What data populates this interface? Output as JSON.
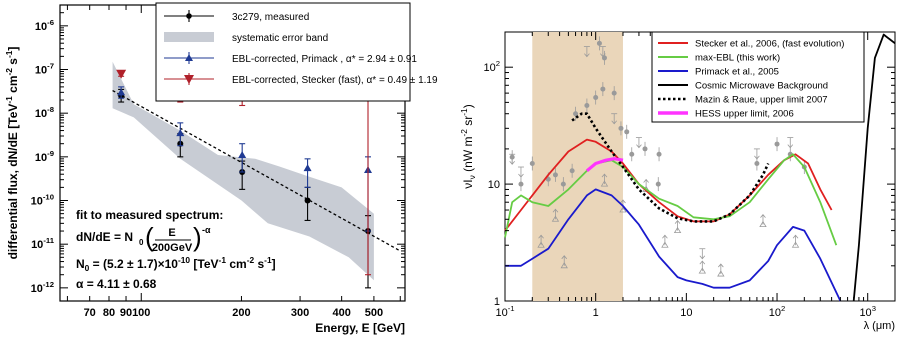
{
  "chart_data": [
    {
      "type": "scatter",
      "xlabel": "Energy, E [GeV]",
      "ylabel": "differential flux, dN/dE [TeV-1 cm-2 s-1]",
      "xscale": "log",
      "yscale": "log",
      "xlim": [
        57,
        620
      ],
      "ylim": [
        5e-13,
        3e-06
      ],
      "x_tick_labels": [
        "70",
        "80",
        "90",
        "100",
        "200",
        "300",
        "400",
        "500"
      ],
      "y_tick_labels": [
        {
          "m": "10",
          "e": "-12"
        },
        {
          "m": "10",
          "e": "-11"
        },
        {
          "m": "10",
          "e": "-10"
        },
        {
          "m": "10",
          "e": "-9"
        },
        {
          "m": "10",
          "e": "-8"
        },
        {
          "m": "10",
          "e": "-7"
        },
        {
          "m": "10",
          "e": "-6"
        }
      ],
      "legend": {
        "placement": "top",
        "items": [
          {
            "label": "3c279, measured",
            "marker": "dot",
            "color": "#000000"
          },
          {
            "label": "systematic error band",
            "marker": "band",
            "color": "#c8ccd4"
          },
          {
            "label": "EBL-corrected,  Primack , α* = 2.94 ± 0.91",
            "marker": "triangle-up",
            "color": "#1f3a93"
          },
          {
            "label": "EBL-corrected, Stecker (fast), α* = 0.49 ± 1.19",
            "marker": "triangle-down",
            "color": "#b0202a"
          }
        ]
      },
      "series": [
        {
          "name": "3c279, measured",
          "color": "#000000",
          "points": [
            {
              "x": 87,
              "y": 2.5e-08,
              "ylo": 1.8e-08,
              "yhi": 3.5e-08
            },
            {
              "x": 131,
              "y": 2e-09,
              "ylo": 1e-09,
              "yhi": 3.4e-09
            },
            {
              "x": 201,
              "y": 4.5e-10,
              "ylo": 1.8e-10,
              "yhi": 8e-10
            },
            {
              "x": 316,
              "y": 1e-10,
              "ylo": 3.5e-11,
              "yhi": 2e-10
            },
            {
              "x": 480,
              "y": 2e-11,
              "ylo": 1e-12,
              "yhi": 4.5e-11
            }
          ]
        },
        {
          "name": "EBL-corrected,  Primack",
          "color": "#1f3a93",
          "points": [
            {
              "x": 87,
              "y": 3e-08,
              "ylo": 2.2e-08,
              "yhi": 4e-08
            },
            {
              "x": 131,
              "y": 3.5e-09,
              "ylo": 1.8e-09,
              "yhi": 6e-09
            },
            {
              "x": 201,
              "y": 1.1e-09,
              "ylo": 4.5e-10,
              "yhi": 2e-09
            },
            {
              "x": 316,
              "y": 5.5e-10,
              "ylo": 2e-10,
              "yhi": 9e-10
            },
            {
              "x": 480,
              "y": 5e-10,
              "ylo": 2e-11,
              "yhi": 1e-09
            }
          ]
        },
        {
          "name": "EBL-corrected, Stecker (fast)",
          "color": "#b0202a",
          "points": [
            {
              "x": 87,
              "y": 8e-08,
              "ylo": 7e-08,
              "yhi": 9e-08
            },
            {
              "x": 131,
              "y": 2.5e-08,
              "ylo": 1.8e-08,
              "yhi": 3.5e-08
            },
            {
              "x": 201,
              "y": 2.5e-08,
              "ylo": 1.5e-08,
              "yhi": 3.5e-08
            },
            {
              "x": 316,
              "y": 5e-08,
              "ylo": 2.5e-08,
              "yhi": 8e-08
            },
            {
              "x": 480,
              "y": 2e-07,
              "ylo": 2e-12,
              "yhi": 3e-07
            }
          ]
        }
      ],
      "band": {
        "upper": [
          [
            82,
            1.5e-07
          ],
          [
            95,
            1.6e-08
          ],
          [
            131,
            4e-09
          ],
          [
            170,
            1.1e-09
          ],
          [
            220,
            9e-10
          ],
          [
            260,
            6e-10
          ],
          [
            320,
            3.5e-10
          ],
          [
            400,
            2e-10
          ],
          [
            500,
            5e-11
          ]
        ],
        "lower": [
          [
            500,
            1.5e-12
          ],
          [
            420,
            5e-12
          ],
          [
            320,
            1.5e-11
          ],
          [
            240,
            3e-11
          ],
          [
            200,
            1e-10
          ],
          [
            131,
            9e-10
          ],
          [
            95,
            8e-09
          ],
          [
            82,
            1.3e-08
          ]
        ]
      },
      "fit_line": {
        "x": [
          82,
          600
        ],
        "y": [
          3.3e-08,
          7e-12
        ]
      },
      "annotations": [
        {
          "text": "fit to measured spectrum:"
        },
        {
          "parts": [
            "dN/dE = N",
            "0",
            "(",
            "E",
            "200GeV",
            ")",
            "-α"
          ]
        },
        {
          "parts": [
            "N",
            "0",
            " = (5.2 ± 1.7)×10",
            "-10",
            " [TeV",
            "-1",
            " cm",
            "-2",
            " s",
            "-1",
            "]"
          ]
        },
        {
          "text": "α  = 4.11 ± 0.68"
        }
      ]
    },
    {
      "type": "line",
      "xlabel": "λ (μm)",
      "ylabel": "νI_ν (nW m-2 sr-1)",
      "xscale": "log",
      "yscale": "log",
      "xlim": [
        0.1,
        2000
      ],
      "ylim": [
        1,
        200
      ],
      "x_tick_labels": [
        {
          "v": 0.1,
          "m": "10",
          "e": "-1"
        },
        {
          "v": 1,
          "t": "1"
        },
        {
          "v": 10,
          "t": "10"
        },
        {
          "v": 100,
          "t": "10",
          "e": "2"
        },
        {
          "v": 1000,
          "t": "10",
          "e": "3"
        }
      ],
      "y_tick_labels": [
        {
          "v": 1,
          "t": "1"
        },
        {
          "v": 10,
          "t": "10"
        },
        {
          "v": 100,
          "t": "10",
          "e": "2"
        }
      ],
      "shaded_region": {
        "x": [
          0.2,
          2.0
        ],
        "color": "#ead6ba"
      },
      "legend": {
        "placement": "top-right",
        "items": [
          {
            "label": "Stecker et al., 2006, (fast evolution)",
            "color": "#e02020"
          },
          {
            "label": "max-EBL (this work)",
            "color": "#66cc44"
          },
          {
            "label": "Primack et al., 2005",
            "color": "#1a1acc"
          },
          {
            "label": "Cosmic Microwave Background",
            "color": "#000000"
          },
          {
            "label": "Mazin & Raue, upper limit 2007",
            "color": "#000000",
            "dash": "dotted"
          },
          {
            "label": "HESS upper limit, 2006",
            "color": "#ff33ff"
          }
        ]
      },
      "series": [
        {
          "name": "Stecker et al., 2006, (fast evolution)",
          "color": "#e02020",
          "x": [
            0.1,
            0.15,
            0.2,
            0.3,
            0.5,
            0.8,
            1,
            1.5,
            2,
            3,
            5,
            8,
            12,
            20,
            30,
            50,
            80,
            120,
            160,
            220,
            300,
            400
          ],
          "y": [
            4,
            6,
            8,
            12,
            19,
            24,
            23,
            19,
            15,
            10,
            7,
            5.3,
            4.8,
            4.8,
            5.5,
            8,
            12,
            16,
            18,
            15,
            9,
            6
          ]
        },
        {
          "name": "max-EBL (this work)",
          "color": "#66cc44",
          "x": [
            0.1,
            0.12,
            0.15,
            0.2,
            0.3,
            0.5,
            0.8,
            1,
            1.5,
            2,
            3,
            5,
            8,
            12,
            20,
            30,
            50,
            80,
            120,
            150,
            200,
            300,
            450
          ],
          "y": [
            3.5,
            7,
            8,
            7,
            6.5,
            9,
            13,
            15,
            16,
            14,
            10,
            7.5,
            6.5,
            5.2,
            5,
            5.3,
            7,
            11,
            16,
            18,
            14,
            7,
            3
          ]
        },
        {
          "name": "Primack et al., 2005",
          "color": "#1a1acc",
          "x": [
            0.1,
            0.15,
            0.2,
            0.3,
            0.5,
            0.8,
            1,
            1.5,
            2,
            3,
            5,
            8,
            10,
            15,
            20,
            30,
            50,
            80,
            100,
            150,
            200,
            300,
            500
          ],
          "y": [
            2,
            2,
            2.3,
            2.8,
            5,
            8,
            9,
            8,
            6.5,
            4.5,
            2.4,
            1.6,
            1.5,
            1.4,
            1.3,
            1.3,
            1.5,
            2.2,
            3,
            4.3,
            4,
            2.3,
            1
          ]
        },
        {
          "name": "Cosmic Microwave Background",
          "color": "#000000",
          "x": [
            700,
            800,
            1000,
            1200,
            1500,
            2000
          ],
          "y": [
            1,
            3,
            30,
            120,
            190,
            160
          ]
        },
        {
          "name": "Mazin & Raue, upper limit 2007",
          "color": "#000000",
          "dash": "dotted",
          "x": [
            0.55,
            0.7,
            0.8,
            1,
            1.5,
            2,
            3,
            5,
            8,
            12,
            20,
            30,
            50,
            70,
            80
          ],
          "y": [
            35,
            40,
            40,
            30,
            19,
            14,
            9,
            6.2,
            5.1,
            4.8,
            4.8,
            5.5,
            8,
            12,
            15
          ]
        },
        {
          "name": "HESS upper limit, 2006",
          "color": "#ff33ff",
          "x": [
            0.8,
            1,
            1.3,
            1.6,
            2
          ],
          "y": [
            13,
            15,
            16,
            16.5,
            16
          ]
        }
      ],
      "measurements": [
        {
          "x": 0.12,
          "y": 17
        },
        {
          "x": 0.15,
          "y": 10
        },
        {
          "x": 0.2,
          "y": 15
        },
        {
          "x": 0.3,
          "y": 11
        },
        {
          "x": 0.36,
          "y": 12
        },
        {
          "x": 0.44,
          "y": 10
        },
        {
          "x": 0.55,
          "y": 13
        },
        {
          "x": 0.6,
          "y": 40
        },
        {
          "x": 0.8,
          "y": 47
        },
        {
          "x": 1.0,
          "y": 55
        },
        {
          "x": 1.2,
          "y": 65
        },
        {
          "x": 1.25,
          "y": 120
        },
        {
          "x": 1.6,
          "y": 60
        },
        {
          "x": 1.9,
          "y": 30
        },
        {
          "x": 2.2,
          "y": 28
        },
        {
          "x": 3.5,
          "y": 20
        },
        {
          "x": 2.5,
          "y": 18
        },
        {
          "x": 4.9,
          "y": 10
        },
        {
          "x": 5,
          "y": 18
        },
        {
          "x": 60,
          "y": 15
        },
        {
          "x": 100,
          "y": 22
        },
        {
          "x": 140,
          "y": 18
        },
        {
          "x": 200,
          "y": 14
        },
        {
          "x": 1.1,
          "y": 160
        }
      ],
      "limits": [
        {
          "x": 0.12,
          "y": 18,
          "dir": "down"
        },
        {
          "x": 0.15,
          "y": 14,
          "dir": "down"
        },
        {
          "x": 0.8,
          "y": 150,
          "dir": "down"
        },
        {
          "x": 1.2,
          "y": 150,
          "dir": "down"
        },
        {
          "x": 1.6,
          "y": 40,
          "dir": "down"
        },
        {
          "x": 3.0,
          "y": 25,
          "dir": "down"
        },
        {
          "x": 15,
          "y": 2.8,
          "dir": "down"
        },
        {
          "x": 60,
          "y": 20,
          "dir": "down"
        },
        {
          "x": 140,
          "y": 25,
          "dir": "down"
        },
        {
          "x": 0.25,
          "y": 3,
          "dir": "up"
        },
        {
          "x": 0.36,
          "y": 5,
          "dir": "up"
        },
        {
          "x": 0.45,
          "y": 2,
          "dir": "up"
        },
        {
          "x": 1.25,
          "y": 10,
          "dir": "up"
        },
        {
          "x": 2,
          "y": 6,
          "dir": "up"
        },
        {
          "x": 3.6,
          "y": 9,
          "dir": "up"
        },
        {
          "x": 5.8,
          "y": 3,
          "dir": "up"
        },
        {
          "x": 8,
          "y": 4,
          "dir": "up"
        },
        {
          "x": 15,
          "y": 1.8,
          "dir": "up"
        },
        {
          "x": 24,
          "y": 1.7,
          "dir": "up"
        },
        {
          "x": 70,
          "y": 4.5,
          "dir": "up"
        },
        {
          "x": 160,
          "y": 3,
          "dir": "up"
        }
      ]
    }
  ]
}
